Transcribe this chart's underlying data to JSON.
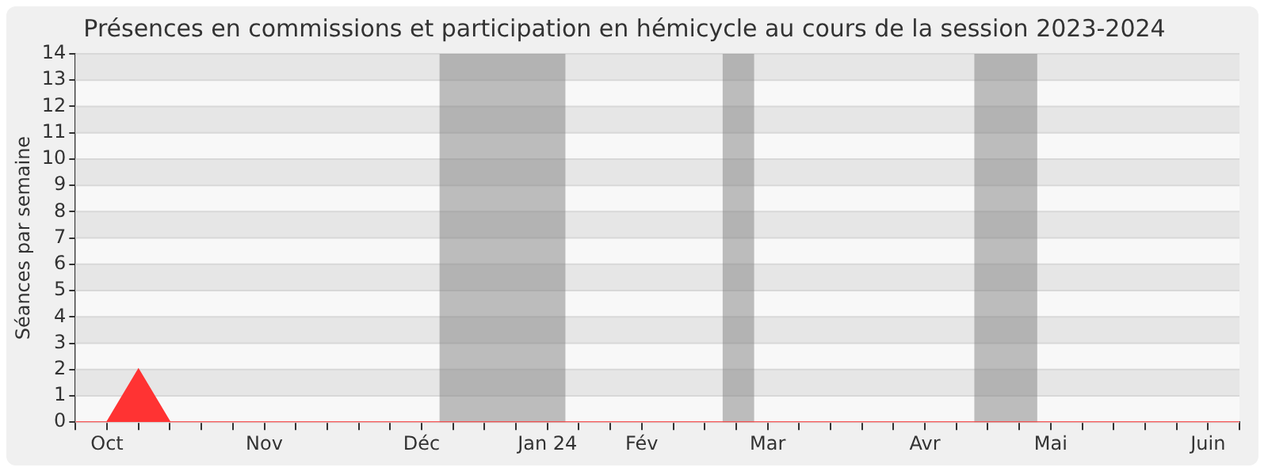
{
  "chart_data": {
    "type": "area",
    "title": "Présences en commissions et participation en hémicycle au cours de la session 2023-2024",
    "ylabel": "Séances par semaine",
    "x": [
      "2023-10-02",
      "2023-10-09",
      "2023-10-16",
      "2023-10-23",
      "2023-10-30",
      "2023-11-06",
      "2023-11-13",
      "2023-11-20",
      "2023-11-27",
      "2023-12-04",
      "2023-12-11",
      "2023-12-18",
      "2023-12-25",
      "2024-01-01",
      "2024-01-08",
      "2024-01-15",
      "2024-01-22",
      "2024-01-29",
      "2024-02-05",
      "2024-02-12",
      "2024-02-19",
      "2024-02-26",
      "2024-03-04",
      "2024-03-11",
      "2024-03-18",
      "2024-03-25",
      "2024-04-01",
      "2024-04-08",
      "2024-04-15",
      "2024-04-22",
      "2024-04-29",
      "2024-05-06",
      "2024-05-13",
      "2024-05-20",
      "2024-05-27",
      "2024-06-03",
      "2024-06-10",
      "2024-06-17"
    ],
    "series": [
      {
        "color": "#ff3333",
        "values": [
          0,
          0,
          2,
          0,
          0,
          0,
          0,
          0,
          0,
          0,
          0,
          0,
          0,
          0,
          0,
          0,
          0,
          0,
          0,
          0,
          0,
          0,
          0,
          0,
          0,
          0,
          0,
          0,
          0,
          0,
          0,
          0,
          0,
          0,
          0,
          0,
          0,
          0
        ]
      }
    ],
    "xlim": [
      "2023-10-02",
      "2024-06-17"
    ],
    "xticks": [
      {
        "value": "2023-10-02",
        "label": null
      },
      {
        "value": "2023-10-09",
        "label": "Oct"
      },
      {
        "value": "2023-10-16",
        "label": null
      },
      {
        "value": "2023-10-23",
        "label": null
      },
      {
        "value": "2023-10-30",
        "label": null
      },
      {
        "value": "2023-11-06",
        "label": null
      },
      {
        "value": "2023-11-13",
        "label": "Nov"
      },
      {
        "value": "2023-11-20",
        "label": null
      },
      {
        "value": "2023-11-27",
        "label": null
      },
      {
        "value": "2023-12-04",
        "label": null
      },
      {
        "value": "2023-12-11",
        "label": null
      },
      {
        "value": "2023-12-18",
        "label": "Déc"
      },
      {
        "value": "2023-12-25",
        "label": null
      },
      {
        "value": "2024-01-01",
        "label": null
      },
      {
        "value": "2024-01-08",
        "label": null
      },
      {
        "value": "2024-01-15",
        "label": "Jan 24"
      },
      {
        "value": "2024-01-22",
        "label": null
      },
      {
        "value": "2024-01-29",
        "label": null
      },
      {
        "value": "2024-02-05",
        "label": "Fév"
      },
      {
        "value": "2024-02-12",
        "label": null
      },
      {
        "value": "2024-02-19",
        "label": null
      },
      {
        "value": "2024-02-26",
        "label": null
      },
      {
        "value": "2024-03-04",
        "label": "Mar"
      },
      {
        "value": "2024-03-11",
        "label": null
      },
      {
        "value": "2024-03-18",
        "label": null
      },
      {
        "value": "2024-03-25",
        "label": null
      },
      {
        "value": "2024-04-01",
        "label": null
      },
      {
        "value": "2024-04-08",
        "label": "Avr"
      },
      {
        "value": "2024-04-15",
        "label": null
      },
      {
        "value": "2024-04-22",
        "label": null
      },
      {
        "value": "2024-04-29",
        "label": null
      },
      {
        "value": "2024-05-06",
        "label": "Mai"
      },
      {
        "value": "2024-05-13",
        "label": null
      },
      {
        "value": "2024-05-20",
        "label": null
      },
      {
        "value": "2024-05-27",
        "label": null
      },
      {
        "value": "2024-06-03",
        "label": null
      },
      {
        "value": "2024-06-10",
        "label": "Juin"
      },
      {
        "value": "2024-06-17",
        "label": null
      }
    ],
    "ylim": [
      0,
      14
    ],
    "yticks": [
      0,
      1,
      2,
      3,
      4,
      5,
      6,
      7,
      8,
      9,
      10,
      11,
      12,
      13,
      14
    ],
    "bands": [
      {
        "axis": "x",
        "from": "2023-12-22",
        "to": "2024-01-19",
        "color": "#808080"
      },
      {
        "axis": "x",
        "from": "2024-02-23",
        "to": "2024-03-01",
        "color": "#808080"
      },
      {
        "axis": "x",
        "from": "2024-04-19",
        "to": "2024-05-03",
        "color": "#808080"
      }
    ],
    "grid": "y",
    "legend": false,
    "marker": "none"
  }
}
